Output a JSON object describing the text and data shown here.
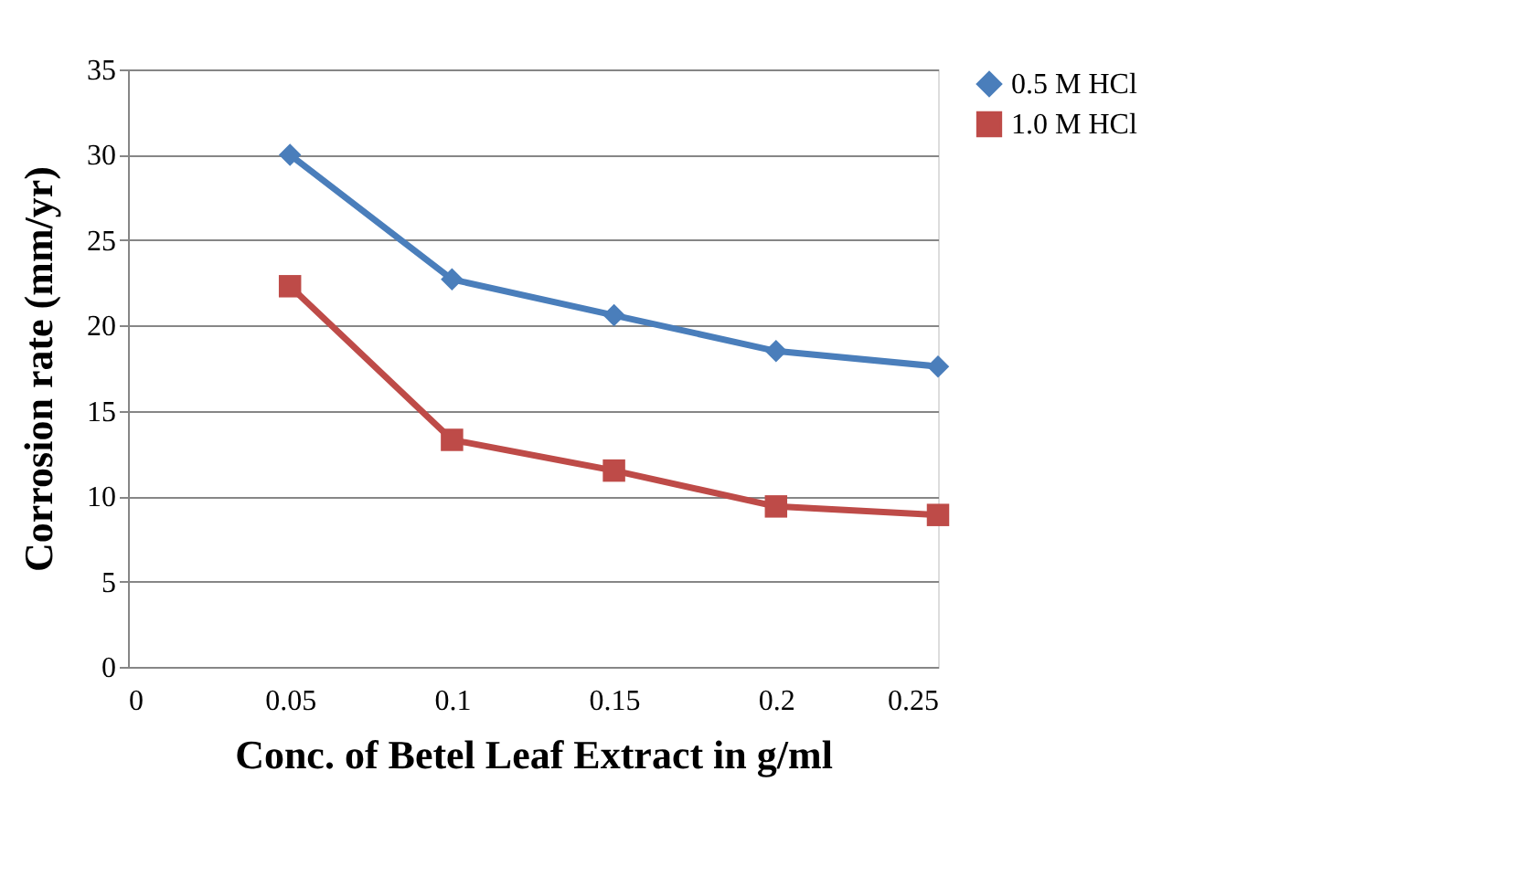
{
  "chart_data": {
    "type": "line",
    "xlabel": "Conc. of Betel Leaf Extract in g/ml",
    "ylabel": "Corrosion rate (mm/yr)",
    "x": [
      0.05,
      0.1,
      0.15,
      0.2,
      0.25
    ],
    "series": [
      {
        "name": "0.5 M HCl",
        "color": "#4a7ebb",
        "marker": "diamond",
        "values": [
          30.0,
          22.7,
          20.6,
          18.5,
          17.6
        ]
      },
      {
        "name": "1.0 M HCl",
        "color": "#be4b48",
        "marker": "square",
        "values": [
          22.3,
          13.3,
          11.5,
          9.4,
          8.9
        ]
      }
    ],
    "xlim": [
      0,
      0.25
    ],
    "xticks": [
      0,
      0.05,
      0.1,
      0.15,
      0.2,
      0.25
    ],
    "ylim": [
      0,
      35
    ],
    "yticks": [
      0,
      5,
      10,
      15,
      20,
      25,
      30,
      35
    ],
    "grid": "y",
    "legend": "right",
    "line_style": "solid"
  }
}
